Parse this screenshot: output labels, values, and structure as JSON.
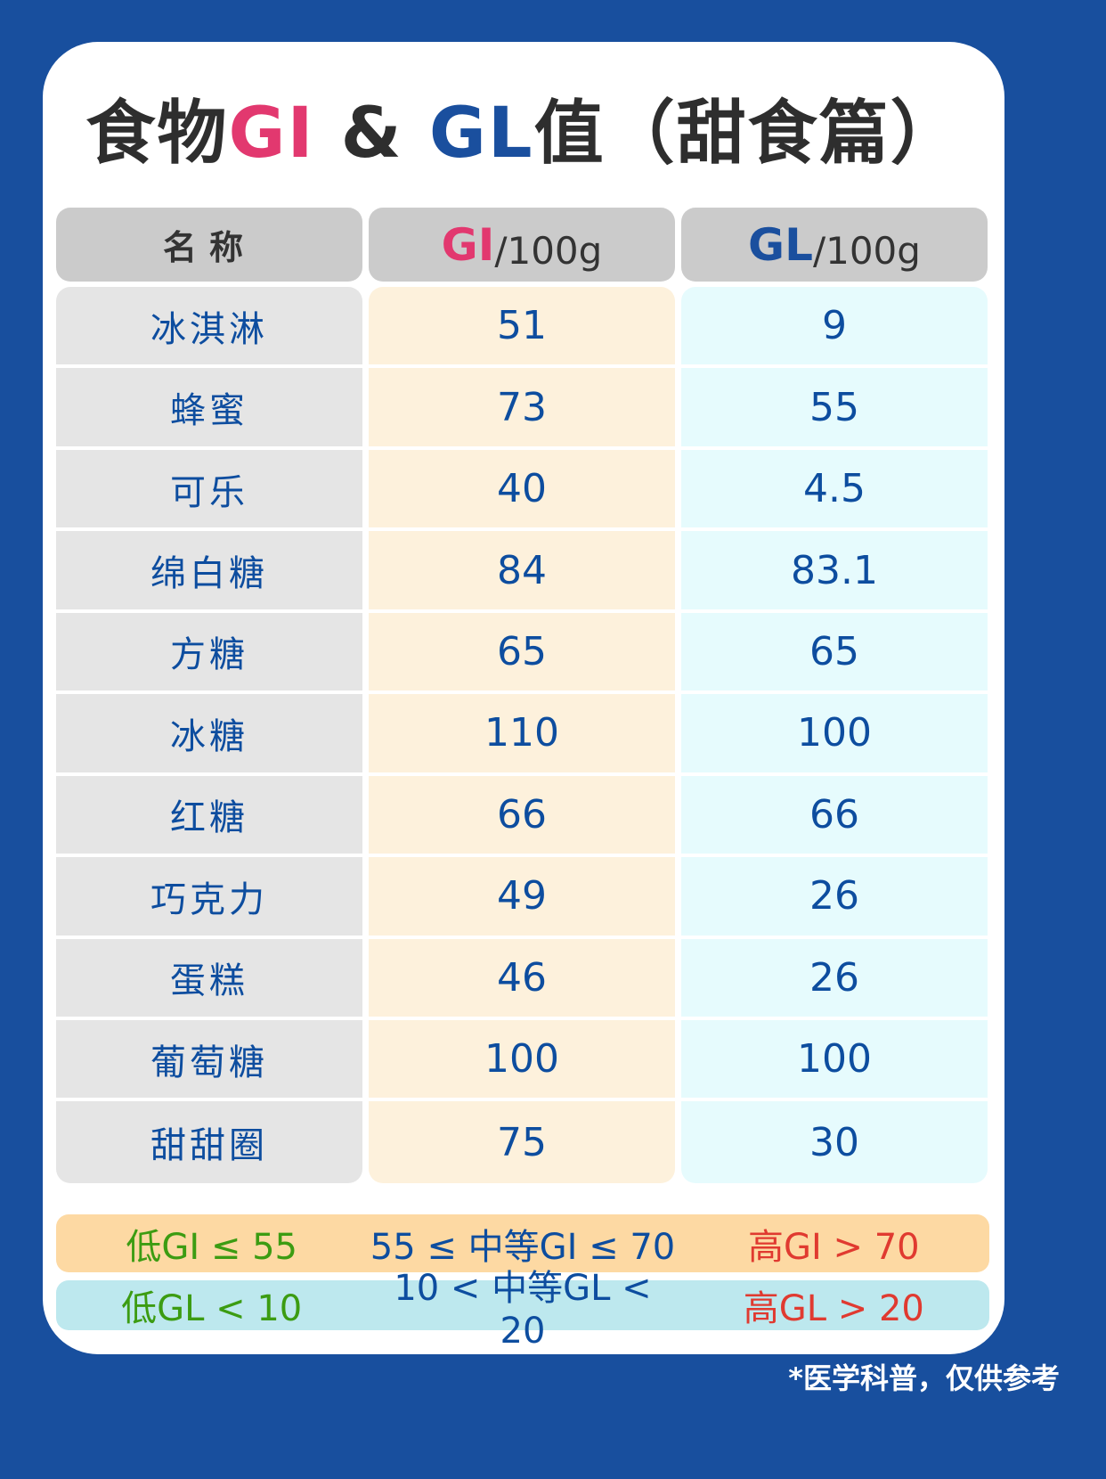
{
  "title": {
    "part1": "食物",
    "gi": "GI",
    "amp": " & ",
    "gl": "GL",
    "part2": "值（甜食篇）"
  },
  "colors": {
    "background": "#184f9e",
    "gi_accent": "#e2386f",
    "gl_accent": "#1a4f9e",
    "low": "#3c9c12",
    "mid": "#0d4d9f",
    "high": "#e03a30"
  },
  "headers": {
    "name": "名称",
    "gi": "GI",
    "gl": "GL",
    "unit": "/100g"
  },
  "rows": [
    {
      "name": "冰淇淋",
      "gi": "51",
      "gl": "9"
    },
    {
      "name": "蜂蜜",
      "gi": "73",
      "gl": "55"
    },
    {
      "name": "可乐",
      "gi": "40",
      "gl": "4.5"
    },
    {
      "name": "绵白糖",
      "gi": "84",
      "gl": "83.1"
    },
    {
      "name": "方糖",
      "gi": "65",
      "gl": "65"
    },
    {
      "name": "冰糖",
      "gi": "110",
      "gl": "100"
    },
    {
      "name": "红糖",
      "gi": "66",
      "gl": "66"
    },
    {
      "name": "巧克力",
      "gi": "49",
      "gl": "26"
    },
    {
      "name": "蛋糕",
      "gi": "46",
      "gl": "26"
    },
    {
      "name": "葡萄糖",
      "gi": "100",
      "gl": "100"
    },
    {
      "name": "甜甜圈",
      "gi": "75",
      "gl": "30"
    }
  ],
  "legend": {
    "gi": {
      "low": "低GI ≤ 55",
      "mid": "55 ≤ 中等GI ≤ 70",
      "high": "高GI > 70"
    },
    "gl": {
      "low": "低GL < 10",
      "mid": "10 < 中等GL < 20",
      "high": "高GL > 20"
    }
  },
  "footer": "*医学科普，仅供参考"
}
